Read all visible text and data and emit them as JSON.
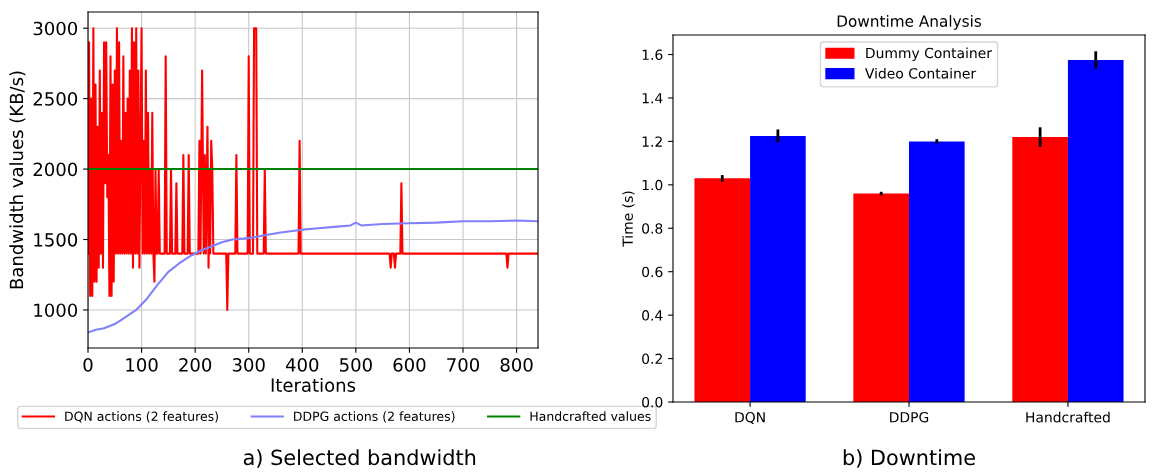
{
  "chart_data": [
    {
      "type": "line",
      "xlabel": "Iterations",
      "ylabel": "Bandwidth values (KB/s)",
      "xlim": [
        0,
        840
      ],
      "ylim": [
        730,
        3115
      ],
      "xticks": [
        0,
        100,
        200,
        300,
        400,
        500,
        600,
        700,
        800
      ],
      "yticks": [
        1000,
        1500,
        2000,
        2500,
        3000
      ],
      "grid": true,
      "legend": "bottom",
      "annotations": [
        "a) Selected bandwidth"
      ],
      "series": [
        {
          "name": "DQN actions (2 features)",
          "color": "#ff0000",
          "x": [
            0,
            2,
            4,
            6,
            8,
            10,
            12,
            14,
            16,
            18,
            20,
            22,
            24,
            26,
            28,
            30,
            32,
            34,
            36,
            38,
            40,
            42,
            44,
            46,
            48,
            50,
            52,
            54,
            56,
            58,
            60,
            62,
            64,
            66,
            68,
            70,
            72,
            74,
            76,
            78,
            80,
            82,
            84,
            86,
            88,
            90,
            92,
            94,
            96,
            98,
            100,
            102,
            104,
            106,
            108,
            110,
            112,
            114,
            116,
            118,
            120,
            122,
            124,
            126,
            128,
            130,
            132,
            134,
            143,
            145,
            147,
            153,
            155,
            157,
            163,
            165,
            167,
            176,
            178,
            180,
            186,
            188,
            190,
            206,
            208,
            210,
            213,
            216,
            218,
            220,
            223,
            225,
            227,
            228,
            230,
            232,
            234,
            258,
            260,
            262,
            275,
            277,
            279,
            298,
            300,
            302,
            308,
            310,
            314,
            316,
            328,
            330,
            332,
            393,
            395,
            397,
            563,
            565,
            567,
            571,
            573,
            575,
            583,
            585,
            587,
            781,
            783,
            785,
            840
          ],
          "values": [
            1400,
            2900,
            1100,
            2500,
            1100,
            3000,
            1200,
            2600,
            1200,
            2300,
            1300,
            2700,
            1400,
            2400,
            1300,
            2900,
            1900,
            2900,
            1800,
            2100,
            1100,
            2800,
            1100,
            2600,
            1200,
            2700,
            1400,
            3000,
            1400,
            2900,
            1400,
            2200,
            1400,
            2800,
            1400,
            2400,
            1400,
            2500,
            1400,
            2700,
            1400,
            3000,
            1300,
            2900,
            1400,
            3000,
            1400,
            2700,
            1300,
            2200,
            3000,
            1400,
            2200,
            1400,
            2700,
            1400,
            2400,
            1400,
            2000,
            1400,
            2400,
            1400,
            1200,
            2000,
            1400,
            1400,
            2000,
            1400,
            1400,
            2800,
            1400,
            1400,
            2000,
            1400,
            1400,
            1900,
            1400,
            1400,
            2100,
            1400,
            1400,
            2100,
            1400,
            1400,
            2200,
            1400,
            2700,
            1400,
            2100,
            1400,
            2300,
            1300,
            2000,
            1400,
            2200,
            2000,
            1400,
            1400,
            1000,
            1400,
            1400,
            2100,
            1400,
            1400,
            2800,
            1400,
            1400,
            3000,
            3000,
            1400,
            1400,
            2000,
            1400,
            1400,
            2200,
            1400,
            1400,
            1300,
            1400,
            1400,
            1300,
            1400,
            1400,
            1900,
            1400,
            1400,
            1300,
            1400,
            1400
          ]
        },
        {
          "name": "DDPG actions (2 features)",
          "color": "#8080ff",
          "x": [
            0,
            15,
            30,
            50,
            70,
            90,
            110,
            130,
            150,
            170,
            190,
            210,
            230,
            250,
            270,
            300,
            330,
            360,
            400,
            430,
            460,
            490,
            500,
            510,
            550,
            600,
            650,
            700,
            750,
            800,
            840
          ],
          "values": [
            840,
            860,
            870,
            900,
            950,
            1000,
            1080,
            1180,
            1270,
            1330,
            1380,
            1420,
            1450,
            1480,
            1500,
            1510,
            1530,
            1550,
            1570,
            1580,
            1590,
            1600,
            1620,
            1600,
            1610,
            1615,
            1620,
            1630,
            1630,
            1635,
            1630
          ]
        },
        {
          "name": "Handcrafted values",
          "color": "#008000",
          "x": [
            0,
            840
          ],
          "values": [
            2000,
            2000
          ]
        }
      ]
    },
    {
      "type": "bar",
      "title": "Downtime Analysis",
      "ylabel": "Time (s)",
      "categories": [
        "DQN",
        "DDPG",
        "Handcrafted"
      ],
      "ylim": [
        0,
        1.69
      ],
      "yticks": [
        {
          "value": 0,
          "label": "0.0"
        },
        0.2,
        0.4,
        0.6,
        0.8,
        {
          "value": 1,
          "label": "1.0"
        },
        1.2,
        1.4,
        1.6
      ],
      "legend": "top",
      "annotations": [
        "b) Downtime"
      ],
      "series": [
        {
          "name": "Dummy Container",
          "color": "#ff0000",
          "values": [
            1.03,
            0.96,
            1.22
          ],
          "errors": [
            0.015,
            0.008,
            0.045
          ]
        },
        {
          "name": "Video Container",
          "color": "#0000ff",
          "values": [
            1.225,
            1.2,
            1.575
          ],
          "errors": [
            0.03,
            0.01,
            0.04
          ]
        }
      ]
    }
  ]
}
